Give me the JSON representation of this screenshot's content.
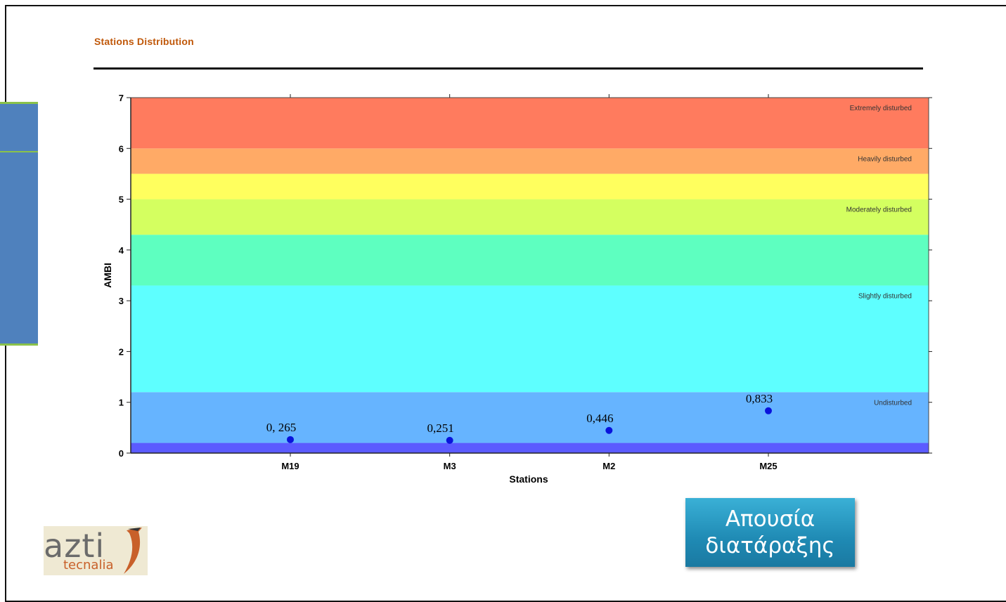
{
  "page": {
    "title": "Stations Distribution",
    "status_line1": "Απουσία",
    "status_line2": "διατάραξης",
    "logo_main": "azti",
    "logo_sub": "tecnalia"
  },
  "chart_data": {
    "type": "scatter",
    "title": "Stations Distribution",
    "xlabel": "Stations",
    "ylabel": "AMBI",
    "ylim": [
      0,
      7
    ],
    "yticks": [
      0,
      1,
      2,
      3,
      4,
      5,
      6,
      7
    ],
    "categories": [
      "M19",
      "M3",
      "M2",
      "M25"
    ],
    "values": [
      0.265,
      0.251,
      0.446,
      0.833
    ],
    "data_labels": [
      "0, 265",
      "0,251",
      "0,446",
      "0,833"
    ],
    "point_color": "#0a14dc",
    "bands": [
      {
        "from": 0,
        "to": 0.2,
        "color": "#5b5bff",
        "label": ""
      },
      {
        "from": 0.2,
        "to": 1.2,
        "color": "#66b4ff",
        "label": "Undisturbed"
      },
      {
        "from": 1.2,
        "to": 3.3,
        "color": "#5effff",
        "label": "Slightly disturbed"
      },
      {
        "from": 3.3,
        "to": 4.3,
        "color": "#5effc0",
        "label": ""
      },
      {
        "from": 4.3,
        "to": 5.0,
        "color": "#d4ff60",
        "label": "Moderately disturbed"
      },
      {
        "from": 5.0,
        "to": 5.5,
        "color": "#ffff5e",
        "label": ""
      },
      {
        "from": 5.5,
        "to": 6.0,
        "color": "#ffaa66",
        "label": "Heavily disturbed"
      },
      {
        "from": 6.0,
        "to": 7.0,
        "color": "#ff7b5e",
        "label": "Extremely disturbed"
      }
    ]
  }
}
